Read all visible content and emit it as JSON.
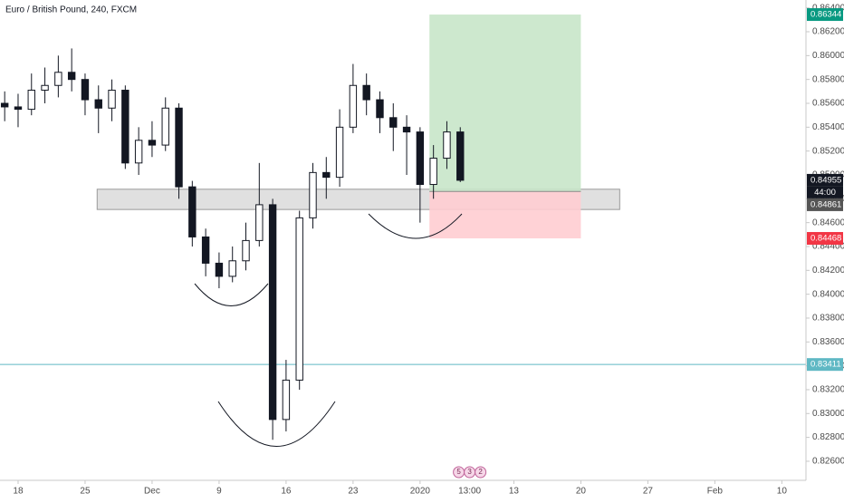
{
  "chart_data": {
    "type": "candlestick",
    "title": "Euro / British Pound, 240, FXCM",
    "x": [
      -1,
      0,
      1,
      2,
      3,
      4,
      5,
      6,
      7,
      8,
      9,
      10,
      11,
      12,
      13,
      14,
      15,
      16,
      17,
      18,
      19,
      20,
      21,
      22,
      23,
      24,
      25,
      26,
      27,
      28,
      29,
      30,
      31,
      32,
      33
    ],
    "open": [
      0.856,
      0.8557,
      0.8555,
      0.8571,
      0.8575,
      0.8586,
      0.858,
      0.8563,
      0.8556,
      0.8571,
      0.851,
      0.8529,
      0.8525,
      0.8556,
      0.849,
      0.8448,
      0.8426,
      0.8415,
      0.8428,
      0.8445,
      0.8475,
      0.8295,
      0.8328,
      0.8464,
      0.8502,
      0.8498,
      0.854,
      0.8575,
      0.8563,
      0.8548,
      0.854,
      0.8536,
      0.8492,
      0.8514,
      0.8536
    ],
    "high": [
      0.857,
      0.8568,
      0.8585,
      0.859,
      0.86,
      0.8606,
      0.8585,
      0.8575,
      0.858,
      0.8575,
      0.854,
      0.8545,
      0.8565,
      0.856,
      0.8495,
      0.8455,
      0.8435,
      0.844,
      0.846,
      0.851,
      0.848,
      0.8345,
      0.847,
      0.851,
      0.8515,
      0.8555,
      0.8593,
      0.8585,
      0.857,
      0.856,
      0.855,
      0.854,
      0.8525,
      0.8545,
      0.854
    ],
    "low": [
      0.8545,
      0.854,
      0.855,
      0.856,
      0.8565,
      0.857,
      0.855,
      0.8535,
      0.8545,
      0.8505,
      0.85,
      0.8515,
      0.852,
      0.848,
      0.844,
      0.8415,
      0.8405,
      0.841,
      0.842,
      0.844,
      0.8278,
      0.8285,
      0.832,
      0.8455,
      0.848,
      0.849,
      0.8535,
      0.855,
      0.8535,
      0.852,
      0.85,
      0.846,
      0.848,
      0.8505,
      0.8494
    ],
    "close": [
      0.8557,
      0.8555,
      0.8571,
      0.8575,
      0.8586,
      0.858,
      0.8563,
      0.8556,
      0.8571,
      0.851,
      0.8529,
      0.8525,
      0.8556,
      0.849,
      0.8448,
      0.8426,
      0.8415,
      0.8428,
      0.8445,
      0.8475,
      0.8295,
      0.8328,
      0.8464,
      0.8502,
      0.8498,
      0.854,
      0.8575,
      0.8563,
      0.8548,
      0.854,
      0.8536,
      0.8492,
      0.8514,
      0.8536,
      0.84955
    ],
    "up_color": "#ffffff",
    "down_color": "#131722",
    "xlim": [
      -1.35,
      58.8
    ],
    "ylim": [
      0.8244,
      0.86466
    ],
    "xticks": [
      {
        "value": 0,
        "label": "18"
      },
      {
        "value": 5,
        "label": "25"
      },
      {
        "value": 10,
        "label": "Dec"
      },
      {
        "value": 15,
        "label": "9"
      },
      {
        "value": 20,
        "label": "16"
      },
      {
        "value": 25,
        "label": "23"
      },
      {
        "value": 30,
        "label": "2020"
      },
      {
        "value": 37,
        "label": "13"
      },
      {
        "value": 42,
        "label": "20"
      },
      {
        "value": 47,
        "label": "27"
      },
      {
        "value": 52,
        "label": "Feb"
      },
      {
        "value": 57,
        "label": "10"
      }
    ],
    "yticks": [
      {
        "value": 0.826,
        "label": "0.82600"
      },
      {
        "value": 0.828,
        "label": "0.82800"
      },
      {
        "value": 0.83,
        "label": "0.83000"
      },
      {
        "value": 0.832,
        "label": "0.83200"
      },
      {
        "value": 0.834,
        "label": "0.83400"
      },
      {
        "value": 0.836,
        "label": "0.83600"
      },
      {
        "value": 0.838,
        "label": "0.83800"
      },
      {
        "value": 0.84,
        "label": "0.84000"
      },
      {
        "value": 0.842,
        "label": "0.84200"
      },
      {
        "value": 0.844,
        "label": "0.84400"
      },
      {
        "value": 0.846,
        "label": "0.84600"
      },
      {
        "value": 0.848,
        "label": "0.84800"
      },
      {
        "value": 0.85,
        "label": "0.85000"
      },
      {
        "value": 0.852,
        "label": "0.85200"
      },
      {
        "value": 0.854,
        "label": "0.85400"
      },
      {
        "value": 0.856,
        "label": "0.85600"
      },
      {
        "value": 0.858,
        "label": "0.85800"
      },
      {
        "value": 0.86,
        "label": "0.86000"
      },
      {
        "value": 0.862,
        "label": "0.86200"
      },
      {
        "value": 0.864,
        "label": "0.86400"
      }
    ],
    "zone": {
      "x": [
        5.9,
        44.9
      ],
      "y": [
        0.8471,
        0.8488
      ],
      "color": "#d6d6d6"
    },
    "position": {
      "x": [
        30.7,
        42.0
      ],
      "entry": 0.84861,
      "target": 0.86344,
      "stop": 0.84468,
      "target_color": "#c8e6c9",
      "stop_color": "#ffcdd2"
    },
    "hline": {
      "value": 0.83411,
      "color": "#5fb8c4"
    },
    "price_labels": [
      {
        "value": 0.86344,
        "color": "#089981"
      },
      {
        "value": 0.84955,
        "color": "#131722"
      },
      {
        "value": 0.84861,
        "color": "#555555"
      },
      {
        "value": 0.84468,
        "color": "#f23645"
      },
      {
        "value": 0.83411,
        "color": "#5fb8c4"
      }
    ],
    "countdown": "44:00",
    "crosshair": {
      "x": 33.7,
      "label": "13:00"
    },
    "events": [
      "5",
      "3",
      "2"
    ]
  }
}
